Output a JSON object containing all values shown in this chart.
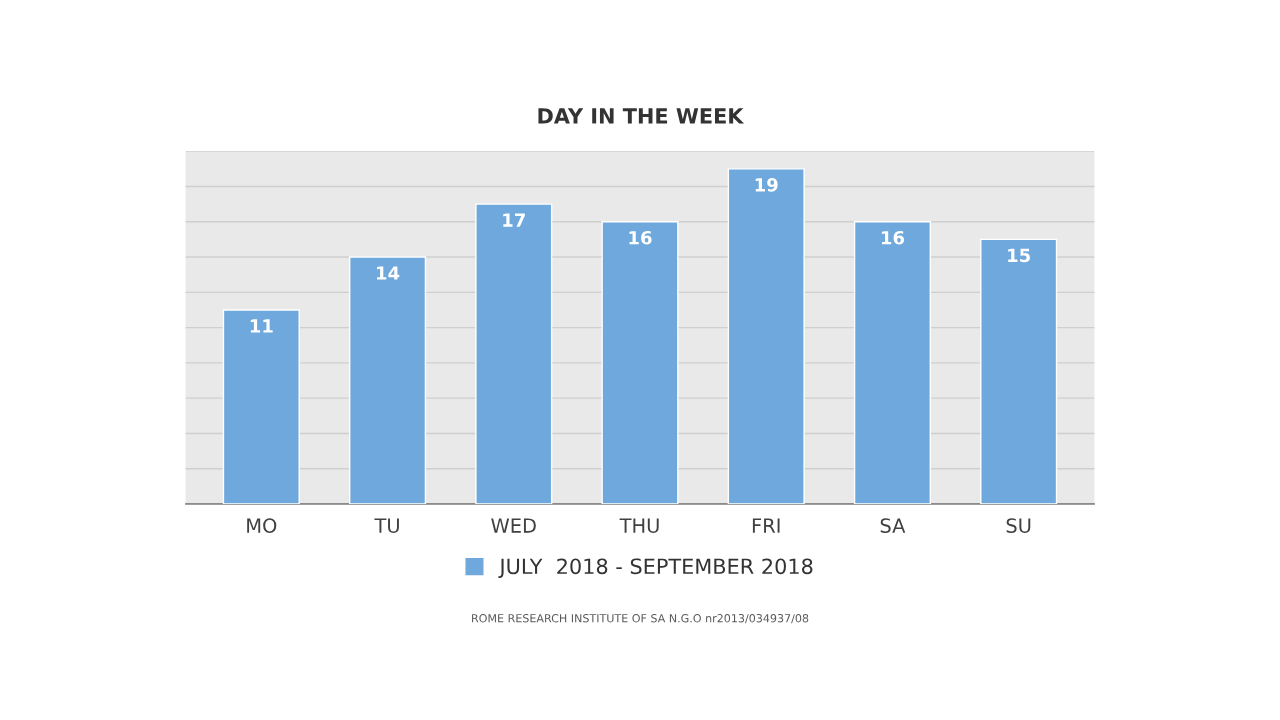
{
  "chart_data": {
    "type": "bar",
    "title": "DAY IN THE WEEK",
    "categories": [
      "MO",
      "TU",
      "WED",
      "THU",
      "FRI",
      "SA",
      "SU"
    ],
    "series": [
      {
        "name": "JULY  2018 - SEPTEMBER 2018",
        "color": "#6fa8dc",
        "values": [
          11,
          14,
          17,
          16,
          19,
          16,
          15
        ]
      }
    ],
    "data_labels": true,
    "ylim": [
      0,
      20
    ],
    "yticks": [
      {
        "value": 0,
        "label": null
      },
      {
        "value": 2,
        "label": null
      },
      {
        "value": 4,
        "label": null
      },
      {
        "value": 6,
        "label": null
      },
      {
        "value": 8,
        "label": null
      },
      {
        "value": 10,
        "label": null
      },
      {
        "value": 12,
        "label": null
      },
      {
        "value": 14,
        "label": null
      },
      {
        "value": 16,
        "label": null
      },
      {
        "value": 18,
        "label": null
      },
      {
        "value": 20,
        "label": null
      }
    ],
    "tick_labels": "x",
    "grid": "y",
    "legend": "bottom",
    "annotations": [
      "ROME RESEARCH INSTITUTE OF SA N.G.O nr2013/034937/08"
    ]
  }
}
